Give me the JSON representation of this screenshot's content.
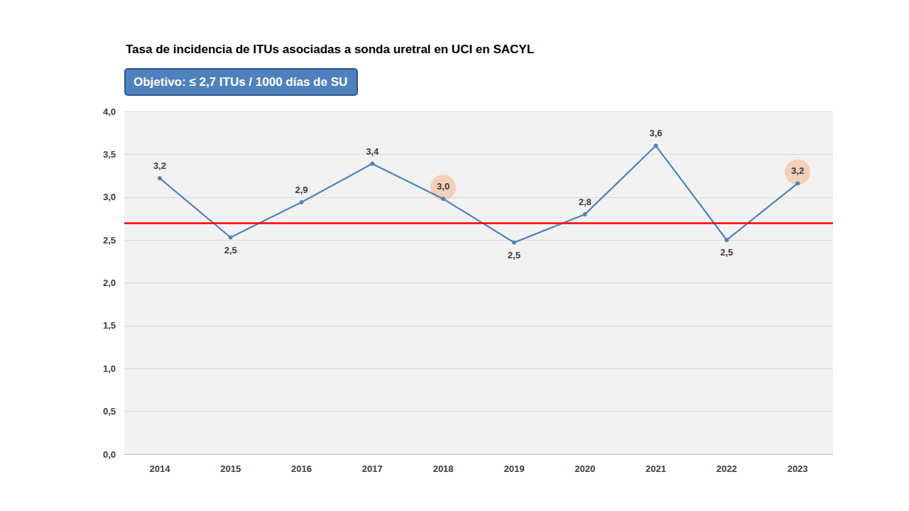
{
  "chart_data": {
    "type": "line",
    "title": "Tasa de incidencia de ITUs asociadas a sonda uretral en UCI en SACYL",
    "annotations": [
      "Objetivo: ≤ 2,7 ITUs / 1000 días de SU"
    ],
    "categories": [
      "2014",
      "2015",
      "2016",
      "2017",
      "2018",
      "2019",
      "2020",
      "2021",
      "2022",
      "2023"
    ],
    "values": [
      3.22,
      2.53,
      2.94,
      3.39,
      2.98,
      2.47,
      2.8,
      3.6,
      2.5,
      3.16
    ],
    "value_labels": [
      "3,2",
      "2,5",
      "2,9",
      "3,4",
      "3,0",
      "2,5",
      "2,8",
      "3,6",
      "2,5",
      "3,2"
    ],
    "color": "#4f81bd",
    "marker": "circle",
    "data_labels": true,
    "grid": true,
    "ylim": [
      0,
      4
    ],
    "yticks": [
      {
        "value": 0,
        "label": "0,0"
      },
      {
        "value": 0.5,
        "label": "0,5"
      },
      {
        "value": 1,
        "label": "1,0"
      },
      {
        "value": 1.5,
        "label": "1,5"
      },
      {
        "value": 2,
        "label": "2,0"
      },
      {
        "value": 2.5,
        "label": "2,5"
      },
      {
        "value": 3,
        "label": "3,0"
      },
      {
        "value": 3.5,
        "label": "3,5"
      },
      {
        "value": 4,
        "label": "4,0"
      }
    ],
    "target_line": {
      "value": 2.7,
      "color": "#ff0000"
    },
    "highlighted": [
      "2018",
      "2023"
    ]
  }
}
